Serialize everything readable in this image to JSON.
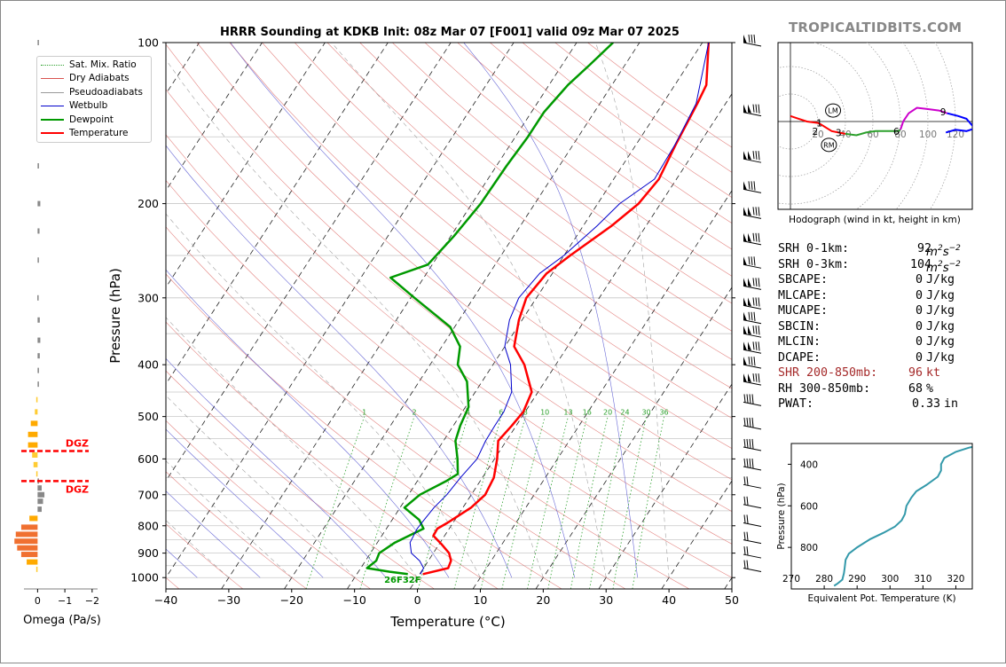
{
  "brand": "TROPICALTIDBITS.COM",
  "title": "HRRR Sounding at KDKB Init: 08z Mar 07 [F001] valid 09z Mar 07 2025",
  "legend": [
    {
      "label": "Sat. Mix. Ratio",
      "color": "#2ca02c",
      "style": "dotted"
    },
    {
      "label": "Dry Adiabats",
      "color": "#d9534f",
      "style": "solid"
    },
    {
      "label": "Pseudoadiabats",
      "color": "#999999",
      "style": "solid"
    },
    {
      "label": "Wetbulb",
      "color": "#0000cc",
      "style": "solid"
    },
    {
      "label": "Dewpoint",
      "color": "#009900",
      "style": "thick"
    },
    {
      "label": "Temperature",
      "color": "#ff0000",
      "style": "thick"
    }
  ],
  "stats": [
    {
      "label": "SRH 0-1km:",
      "value": "92",
      "unit": "m2s-2",
      "red": false
    },
    {
      "label": "SRH 0-3km:",
      "value": "104",
      "unit": "m2s-2",
      "red": false
    },
    {
      "label": "SBCAPE:",
      "value": "0",
      "unit": "J/kg",
      "red": false
    },
    {
      "label": "MLCAPE:",
      "value": "0",
      "unit": "J/kg",
      "red": false
    },
    {
      "label": "MUCAPE:",
      "value": "0",
      "unit": "J/kg",
      "red": false
    },
    {
      "label": "SBCIN:",
      "value": "0",
      "unit": "J/kg",
      "red": false
    },
    {
      "label": "MLCIN:",
      "value": "0",
      "unit": "J/kg",
      "red": false
    },
    {
      "label": "DCAPE:",
      "value": "0",
      "unit": "J/kg",
      "red": false
    },
    {
      "label": "SHR 200-850mb:",
      "value": "96",
      "unit": "kt",
      "red": true
    },
    {
      "label": "RH 300-850mb:",
      "value": "68",
      "unit": "%",
      "red": false
    },
    {
      "label": "PWAT:",
      "value": "0.33",
      "unit": "in",
      "red": false
    }
  ],
  "chart_data": [
    {
      "type": "line",
      "name": "skewt",
      "xlabel": "Temperature (°C)",
      "ylabel": "Pressure (hPa)",
      "xlim": [
        -40,
        50
      ],
      "ylim": [
        1050,
        100
      ],
      "y_scale": "log",
      "skew_note": "skew-T log-p",
      "x_ticks": [
        -40,
        -30,
        -20,
        -10,
        0,
        10,
        20,
        30,
        40,
        50
      ],
      "x_tick_labels": [
        "−40",
        "−30",
        "−20",
        "−10",
        "0",
        "10",
        "20",
        "30",
        "40",
        "50"
      ],
      "y_ticks": [
        100,
        200,
        300,
        400,
        500,
        600,
        700,
        800,
        900,
        1000
      ],
      "mixing_ratio_labels": [
        "1",
        "2",
        "4",
        "6",
        "8",
        "10",
        "13",
        "16",
        "20",
        "24",
        "30",
        "36"
      ],
      "surface_label": "26F32F",
      "series": [
        {
          "name": "Temperature",
          "points": [
            [
              985,
              0.5
            ],
            [
              960,
              3.9
            ],
            [
              930,
              3.6
            ],
            [
              900,
              2.5
            ],
            [
              865,
              0.3
            ],
            [
              835,
              -1.8
            ],
            [
              810,
              -1.9
            ],
            [
              790,
              -0.9
            ],
            [
              740,
              1.3
            ],
            [
              700,
              2.2
            ],
            [
              650,
              1.8
            ],
            [
              600,
              0.4
            ],
            [
              555,
              -1.3
            ],
            [
              520,
              -0.7
            ],
            [
              490,
              -0.3
            ],
            [
              450,
              -1.0
            ],
            [
              400,
              -5.0
            ],
            [
              370,
              -8.5
            ],
            [
              330,
              -10.5
            ],
            [
              300,
              -11.6
            ],
            [
              270,
              -10.9
            ],
            [
              250,
              -9.0
            ],
            [
              220,
              -5.5
            ],
            [
              200,
              -3.5
            ],
            [
              180,
              -2.8
            ],
            [
              155,
              -3.7
            ],
            [
              130,
              -4.5
            ],
            [
              120,
              -5.0
            ],
            [
              100,
              -9.0
            ]
          ]
        },
        {
          "name": "Dewpoint",
          "points": [
            [
              985,
              -1.9
            ],
            [
              975,
              -5.0
            ],
            [
              960,
              -9.0
            ],
            [
              930,
              -8.3
            ],
            [
              900,
              -8.6
            ],
            [
              860,
              -7.2
            ],
            [
              810,
              -4.1
            ],
            [
              780,
              -5.7
            ],
            [
              740,
              -9.3
            ],
            [
              700,
              -8.2
            ],
            [
              660,
              -5.4
            ],
            [
              640,
              -4.3
            ],
            [
              600,
              -5.9
            ],
            [
              555,
              -8.1
            ],
            [
              520,
              -8.9
            ],
            [
              480,
              -9.5
            ],
            [
              430,
              -12.4
            ],
            [
              400,
              -15.6
            ],
            [
              370,
              -17.1
            ],
            [
              340,
              -20.7
            ],
            [
              300,
              -29.4
            ],
            [
              275,
              -35.3
            ],
            [
              260,
              -30.7
            ],
            [
              230,
              -29.5
            ],
            [
              200,
              -28.6
            ],
            [
              170,
              -28.4
            ],
            [
              150,
              -28.0
            ],
            [
              135,
              -28.0
            ],
            [
              120,
              -27.0
            ],
            [
              110,
              -25.6
            ],
            [
              100,
              -24.2
            ]
          ]
        },
        {
          "name": "Wetbulb",
          "points": [
            [
              985,
              0.1
            ],
            [
              960,
              0.0
            ],
            [
              930,
              -1.4
            ],
            [
              900,
              -3.5
            ],
            [
              860,
              -4.8
            ],
            [
              810,
              -5.1
            ],
            [
              780,
              -4.9
            ],
            [
              740,
              -4.6
            ],
            [
              700,
              -3.9
            ],
            [
              650,
              -3.5
            ],
            [
              600,
              -2.8
            ],
            [
              555,
              -3.3
            ],
            [
              520,
              -3.4
            ],
            [
              490,
              -3.4
            ],
            [
              450,
              -4.2
            ],
            [
              400,
              -7.2
            ],
            [
              370,
              -10.0
            ],
            [
              330,
              -12.0
            ],
            [
              300,
              -12.8
            ],
            [
              270,
              -12.0
            ],
            [
              250,
              -10.0
            ],
            [
              220,
              -7.8
            ],
            [
              200,
              -6.5
            ],
            [
              180,
              -3.5
            ],
            [
              155,
              -3.8
            ],
            [
              130,
              -4.7
            ],
            [
              100,
              -9.0
            ]
          ]
        }
      ]
    },
    {
      "type": "bar",
      "name": "omega",
      "xlabel": "Omega (Pa/s)",
      "xlim": [
        0.5,
        -2.2
      ],
      "x_ticks": [
        0,
        -1,
        -2
      ],
      "x_tick_labels": [
        "0",
        "−1",
        "−2"
      ],
      "dgz_label": "DGZ",
      "dgz_pressures": [
        580,
        660
      ],
      "bars": [
        [
          100,
          -0.02
        ],
        [
          150,
          -0.02
        ],
        [
          170,
          -0.05
        ],
        [
          200,
          -0.1
        ],
        [
          225,
          -0.07
        ],
        [
          255,
          -0.04
        ],
        [
          300,
          0.01
        ],
        [
          330,
          -0.08
        ],
        [
          360,
          -0.1
        ],
        [
          385,
          -0.08
        ],
        [
          410,
          -0.05
        ],
        [
          435,
          -0.01
        ],
        [
          465,
          0.05
        ],
        [
          490,
          0.1
        ],
        [
          515,
          0.25
        ],
        [
          540,
          0.35
        ],
        [
          565,
          0.35
        ],
        [
          590,
          0.2
        ],
        [
          615,
          0.15
        ],
        [
          640,
          0.05
        ],
        [
          660,
          -0.05
        ],
        [
          680,
          -0.15
        ],
        [
          700,
          -0.25
        ],
        [
          720,
          -0.2
        ],
        [
          745,
          -0.15
        ],
        [
          775,
          0.3
        ],
        [
          805,
          0.6
        ],
        [
          830,
          0.8
        ],
        [
          855,
          0.85
        ],
        [
          880,
          0.75
        ],
        [
          905,
          0.6
        ],
        [
          935,
          0.4
        ],
        [
          965,
          0.05
        ]
      ]
    },
    {
      "type": "line",
      "name": "hodograph",
      "xlabel": "Hodograph (wind in kt, height in km)",
      "x_ticks": [
        20,
        40,
        60,
        80,
        100,
        120
      ],
      "ring_labels": [
        "20",
        "40",
        "60",
        "80",
        "100",
        "120"
      ],
      "height_labels": [
        "1",
        "2",
        "3",
        "6",
        "9"
      ],
      "storm_labels": [
        "LM",
        "RM"
      ],
      "segments": [
        {
          "color": "#ff0000",
          "points": [
            [
              0,
              4
            ],
            [
              6,
              2
            ],
            [
              12,
              0
            ],
            [
              20,
              -1
            ],
            [
              22,
              -2
            ],
            [
              30,
              -7
            ],
            [
              35,
              -8
            ],
            [
              40,
              -9
            ]
          ]
        },
        {
          "color": "#2ca02c",
          "points": [
            [
              40,
              -9
            ],
            [
              48,
              -10
            ],
            [
              55,
              -8
            ],
            [
              62,
              -7
            ],
            [
              70,
              -7
            ],
            [
              78,
              -7
            ],
            [
              80,
              -6
            ]
          ]
        },
        {
          "color": "#cc00cc",
          "points": [
            [
              80,
              -6
            ],
            [
              82,
              0
            ],
            [
              86,
              6
            ],
            [
              92,
              10
            ],
            [
              100,
              9
            ],
            [
              108,
              8
            ],
            [
              114,
              6
            ]
          ]
        },
        {
          "color": "#0000ff",
          "points": [
            [
              114,
              6
            ],
            [
              122,
              4
            ],
            [
              128,
              2
            ],
            [
              134,
              -5
            ],
            [
              128,
              -7
            ],
            [
              120,
              -6
            ],
            [
              113,
              -8
            ]
          ]
        }
      ]
    },
    {
      "type": "line",
      "name": "theta-e",
      "xlabel": "Equivalent Pot. Temperature (K)",
      "ylabel": "Pressure (hPa)",
      "xlim": [
        270,
        325
      ],
      "ylim": [
        1000,
        300
      ],
      "x_ticks": [
        270,
        280,
        290,
        300,
        310,
        320
      ],
      "y_ticks": [
        400,
        600,
        800
      ],
      "series": [
        {
          "name": "theta-e",
          "color": "#3399aa",
          "points": [
            [
              985,
              283
            ],
            [
              975,
              284
            ],
            [
              955,
              285.5
            ],
            [
              925,
              286
            ],
            [
              900,
              286.2
            ],
            [
              860,
              286.5
            ],
            [
              830,
              287.5
            ],
            [
              800,
              290
            ],
            [
              760,
              294
            ],
            [
              730,
              298
            ],
            [
              700,
              301.5
            ],
            [
              670,
              303.5
            ],
            [
              640,
              304.5
            ],
            [
              600,
              305
            ],
            [
              560,
              306.5
            ],
            [
              530,
              308
            ],
            [
              500,
              311
            ],
            [
              460,
              314.5
            ],
            [
              430,
              315.5
            ],
            [
              400,
              315.5
            ],
            [
              370,
              316.5
            ],
            [
              340,
              320
            ],
            [
              320,
              324
            ],
            [
              300,
              330
            ]
          ]
        }
      ]
    }
  ]
}
